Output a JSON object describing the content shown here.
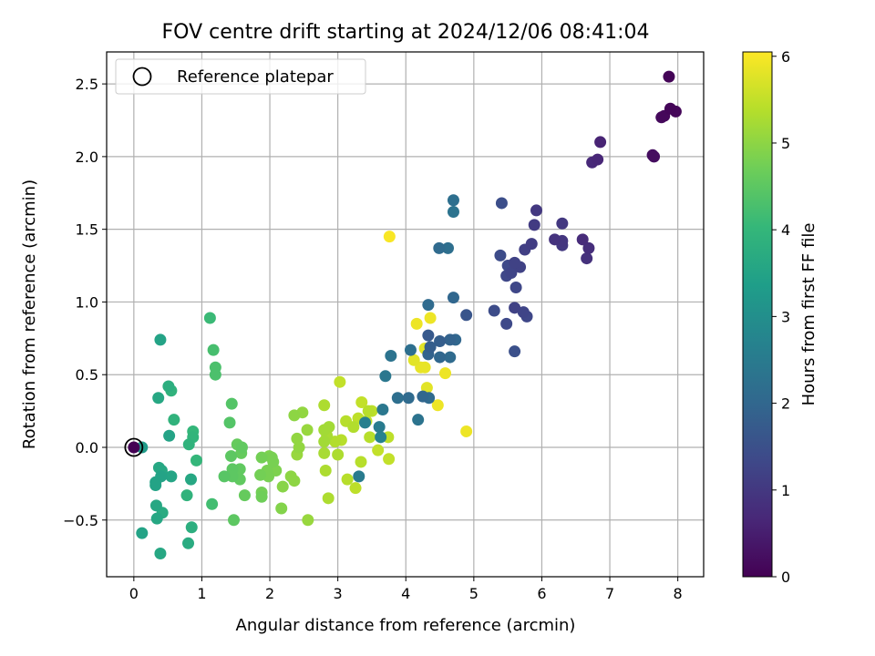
{
  "chart_data": {
    "type": "scatter",
    "title": "FOV centre drift starting at 2024/12/06 08:41:04",
    "xlabel": "Angular distance from reference (arcmin)",
    "ylabel": "Rotation from reference (arcmin)",
    "xlim": [
      -0.4,
      8.38
    ],
    "ylim": [
      -0.89,
      2.72
    ],
    "xticks": [
      0,
      1,
      2,
      3,
      4,
      5,
      6,
      7,
      8
    ],
    "yticks": [
      -0.5,
      0.0,
      0.5,
      1.0,
      1.5,
      2.0,
      2.5
    ],
    "ytick_labels": [
      "−0.5",
      "0.0",
      "0.5",
      "1.0",
      "1.5",
      "2.0",
      "2.5"
    ],
    "grid": true,
    "legend": {
      "placement": "top-left",
      "entries": [
        "Reference platepar"
      ]
    },
    "reference_point": {
      "x": 0.0,
      "y": 0.0
    },
    "colorbar": {
      "label": "Hours from first FF file",
      "range": [
        0,
        6.05
      ],
      "ticks": [
        0,
        1,
        2,
        3,
        4,
        5,
        6
      ],
      "colormap": "viridis",
      "colors": [
        "#440154",
        "#482878",
        "#3e4989",
        "#31688e",
        "#26828e",
        "#1f9e89",
        "#35b779",
        "#6ece58",
        "#b5de2b",
        "#fde725"
      ]
    },
    "points": [
      {
        "x": 7.87,
        "y": 2.55,
        "c": 0.05
      },
      {
        "x": 7.89,
        "y": 2.33,
        "c": 0.08
      },
      {
        "x": 7.97,
        "y": 2.31,
        "c": 0.1
      },
      {
        "x": 7.8,
        "y": 2.28,
        "c": 0.12
      },
      {
        "x": 7.76,
        "y": 2.27,
        "c": 0.15
      },
      {
        "x": 7.65,
        "y": 2.0,
        "c": 0.2
      },
      {
        "x": 7.63,
        "y": 2.01,
        "c": 0.22
      },
      {
        "x": 6.86,
        "y": 2.1,
        "c": 0.6
      },
      {
        "x": 6.82,
        "y": 1.98,
        "c": 0.65
      },
      {
        "x": 6.74,
        "y": 1.96,
        "c": 0.7
      },
      {
        "x": 6.6,
        "y": 1.43,
        "c": 0.75
      },
      {
        "x": 6.69,
        "y": 1.37,
        "c": 0.8
      },
      {
        "x": 6.66,
        "y": 1.3,
        "c": 0.85
      },
      {
        "x": 6.19,
        "y": 1.43,
        "c": 0.9
      },
      {
        "x": 6.3,
        "y": 1.42,
        "c": 0.95
      },
      {
        "x": 6.3,
        "y": 1.39,
        "c": 1.0
      },
      {
        "x": 6.3,
        "y": 1.54,
        "c": 1.0
      },
      {
        "x": 5.92,
        "y": 1.63,
        "c": 1.0
      },
      {
        "x": 5.89,
        "y": 1.53,
        "c": 1.05
      },
      {
        "x": 5.85,
        "y": 1.4,
        "c": 1.1
      },
      {
        "x": 5.75,
        "y": 1.36,
        "c": 1.15
      },
      {
        "x": 5.68,
        "y": 1.24,
        "c": 1.2
      },
      {
        "x": 5.6,
        "y": 1.27,
        "c": 1.2
      },
      {
        "x": 5.55,
        "y": 1.2,
        "c": 1.25
      },
      {
        "x": 5.48,
        "y": 1.18,
        "c": 1.3
      },
      {
        "x": 5.5,
        "y": 1.25,
        "c": 1.35
      },
      {
        "x": 5.39,
        "y": 1.32,
        "c": 1.4
      },
      {
        "x": 5.62,
        "y": 1.1,
        "c": 1.3
      },
      {
        "x": 5.41,
        "y": 1.68,
        "c": 1.45
      },
      {
        "x": 5.6,
        "y": 0.96,
        "c": 1.2
      },
      {
        "x": 5.73,
        "y": 0.93,
        "c": 1.25
      },
      {
        "x": 5.78,
        "y": 0.9,
        "c": 1.3
      },
      {
        "x": 5.48,
        "y": 0.85,
        "c": 1.35
      },
      {
        "x": 5.3,
        "y": 0.94,
        "c": 1.4
      },
      {
        "x": 5.6,
        "y": 0.66,
        "c": 1.5
      },
      {
        "x": 4.89,
        "y": 0.91,
        "c": 1.6
      },
      {
        "x": 4.7,
        "y": 1.7,
        "c": 2.2
      },
      {
        "x": 4.7,
        "y": 1.62,
        "c": 2.3
      },
      {
        "x": 4.49,
        "y": 1.37,
        "c": 2.1
      },
      {
        "x": 4.62,
        "y": 1.37,
        "c": 2.2
      },
      {
        "x": 4.7,
        "y": 1.03,
        "c": 2.0
      },
      {
        "x": 4.33,
        "y": 0.98,
        "c": 2.1
      },
      {
        "x": 4.73,
        "y": 0.74,
        "c": 2.0
      },
      {
        "x": 4.65,
        "y": 0.74,
        "c": 1.9
      },
      {
        "x": 4.5,
        "y": 0.73,
        "c": 1.8
      },
      {
        "x": 4.33,
        "y": 0.77,
        "c": 1.7
      },
      {
        "x": 4.36,
        "y": 0.69,
        "c": 1.8
      },
      {
        "x": 4.33,
        "y": 0.64,
        "c": 1.9
      },
      {
        "x": 4.5,
        "y": 0.62,
        "c": 2.0
      },
      {
        "x": 4.65,
        "y": 0.62,
        "c": 2.1
      },
      {
        "x": 4.07,
        "y": 0.67,
        "c": 2.2
      },
      {
        "x": 3.78,
        "y": 0.63,
        "c": 2.3
      },
      {
        "x": 3.7,
        "y": 0.49,
        "c": 2.4
      },
      {
        "x": 3.88,
        "y": 0.34,
        "c": 2.2
      },
      {
        "x": 4.04,
        "y": 0.34,
        "c": 2.1
      },
      {
        "x": 4.25,
        "y": 0.35,
        "c": 2.0
      },
      {
        "x": 4.34,
        "y": 0.34,
        "c": 2.1
      },
      {
        "x": 4.18,
        "y": 0.19,
        "c": 2.3
      },
      {
        "x": 3.66,
        "y": 0.26,
        "c": 2.4
      },
      {
        "x": 3.61,
        "y": 0.14,
        "c": 2.5
      },
      {
        "x": 3.4,
        "y": 0.17,
        "c": 2.6
      },
      {
        "x": 3.63,
        "y": 0.07,
        "c": 2.7
      },
      {
        "x": 3.31,
        "y": -0.2,
        "c": 2.5
      },
      {
        "x": 3.76,
        "y": 1.45,
        "c": 6.0
      },
      {
        "x": 4.16,
        "y": 0.85,
        "c": 5.9
      },
      {
        "x": 4.36,
        "y": 0.89,
        "c": 5.9
      },
      {
        "x": 4.12,
        "y": 0.6,
        "c": 5.8
      },
      {
        "x": 4.22,
        "y": 0.55,
        "c": 5.85
      },
      {
        "x": 4.28,
        "y": 0.55,
        "c": 5.85
      },
      {
        "x": 4.58,
        "y": 0.51,
        "c": 5.9
      },
      {
        "x": 4.31,
        "y": 0.41,
        "c": 5.8
      },
      {
        "x": 4.47,
        "y": 0.29,
        "c": 5.9
      },
      {
        "x": 4.89,
        "y": 0.11,
        "c": 5.9
      },
      {
        "x": 4.28,
        "y": 0.68,
        "c": 5.8
      },
      {
        "x": 3.03,
        "y": 0.45,
        "c": 5.5
      },
      {
        "x": 3.35,
        "y": 0.31,
        "c": 5.5
      },
      {
        "x": 3.45,
        "y": 0.25,
        "c": 5.4
      },
      {
        "x": 3.5,
        "y": 0.25,
        "c": 5.45
      },
      {
        "x": 3.42,
        "y": 0.18,
        "c": 5.5
      },
      {
        "x": 3.3,
        "y": 0.2,
        "c": 5.45
      },
      {
        "x": 3.12,
        "y": 0.18,
        "c": 5.4
      },
      {
        "x": 3.23,
        "y": 0.14,
        "c": 5.35
      },
      {
        "x": 3.47,
        "y": 0.07,
        "c": 5.4
      },
      {
        "x": 3.74,
        "y": 0.07,
        "c": 5.45
      },
      {
        "x": 3.59,
        "y": -0.02,
        "c": 5.5
      },
      {
        "x": 3.75,
        "y": -0.08,
        "c": 5.5
      },
      {
        "x": 3.05,
        "y": 0.05,
        "c": 5.4
      },
      {
        "x": 2.96,
        "y": 0.04,
        "c": 5.35
      },
      {
        "x": 3.0,
        "y": -0.05,
        "c": 5.3
      },
      {
        "x": 3.34,
        "y": -0.1,
        "c": 5.4
      },
      {
        "x": 3.14,
        "y": -0.22,
        "c": 5.4
      },
      {
        "x": 3.26,
        "y": -0.28,
        "c": 5.45
      },
      {
        "x": 2.8,
        "y": 0.29,
        "c": 5.3
      },
      {
        "x": 2.87,
        "y": 0.14,
        "c": 5.2
      },
      {
        "x": 2.8,
        "y": 0.12,
        "c": 5.2
      },
      {
        "x": 2.84,
        "y": 0.08,
        "c": 5.25
      },
      {
        "x": 2.8,
        "y": 0.04,
        "c": 5.2
      },
      {
        "x": 2.8,
        "y": -0.04,
        "c": 5.25
      },
      {
        "x": 2.82,
        "y": -0.16,
        "c": 5.3
      },
      {
        "x": 2.86,
        "y": -0.35,
        "c": 5.3
      },
      {
        "x": 2.56,
        "y": -0.5,
        "c": 5.1
      },
      {
        "x": 2.55,
        "y": 0.12,
        "c": 5.1
      },
      {
        "x": 2.48,
        "y": 0.24,
        "c": 5.05
      },
      {
        "x": 2.36,
        "y": 0.22,
        "c": 5.0
      },
      {
        "x": 2.4,
        "y": 0.06,
        "c": 5.05
      },
      {
        "x": 2.4,
        "y": -0.05,
        "c": 5.1
      },
      {
        "x": 2.43,
        "y": 0.0,
        "c": 5.05
      },
      {
        "x": 2.31,
        "y": -0.2,
        "c": 5.0
      },
      {
        "x": 2.36,
        "y": -0.23,
        "c": 5.0
      },
      {
        "x": 2.19,
        "y": -0.27,
        "c": 4.95
      },
      {
        "x": 2.17,
        "y": -0.42,
        "c": 4.9
      },
      {
        "x": 2.03,
        "y": -0.07,
        "c": 4.8
      },
      {
        "x": 1.99,
        "y": -0.06,
        "c": 4.85
      },
      {
        "x": 2.05,
        "y": -0.1,
        "c": 4.8
      },
      {
        "x": 2.09,
        "y": -0.16,
        "c": 4.85
      },
      {
        "x": 1.96,
        "y": -0.16,
        "c": 4.8
      },
      {
        "x": 1.88,
        "y": -0.07,
        "c": 4.75
      },
      {
        "x": 1.86,
        "y": -0.19,
        "c": 4.75
      },
      {
        "x": 1.98,
        "y": -0.2,
        "c": 4.8
      },
      {
        "x": 1.88,
        "y": -0.31,
        "c": 4.75
      },
      {
        "x": 1.88,
        "y": -0.34,
        "c": 4.7
      },
      {
        "x": 1.52,
        "y": 0.02,
        "c": 4.6
      },
      {
        "x": 1.59,
        "y": 0.0,
        "c": 4.55
      },
      {
        "x": 1.58,
        "y": -0.04,
        "c": 4.6
      },
      {
        "x": 1.43,
        "y": -0.06,
        "c": 4.5
      },
      {
        "x": 1.45,
        "y": -0.15,
        "c": 4.5
      },
      {
        "x": 1.56,
        "y": -0.15,
        "c": 4.55
      },
      {
        "x": 1.45,
        "y": -0.2,
        "c": 4.5
      },
      {
        "x": 1.33,
        "y": -0.2,
        "c": 4.45
      },
      {
        "x": 1.56,
        "y": -0.22,
        "c": 4.55
      },
      {
        "x": 1.63,
        "y": -0.33,
        "c": 4.6
      },
      {
        "x": 1.47,
        "y": -0.5,
        "c": 4.5
      },
      {
        "x": 1.41,
        "y": 0.17,
        "c": 4.4
      },
      {
        "x": 1.44,
        "y": 0.3,
        "c": 4.4
      },
      {
        "x": 1.2,
        "y": 0.55,
        "c": 4.3
      },
      {
        "x": 1.2,
        "y": 0.5,
        "c": 4.3
      },
      {
        "x": 1.17,
        "y": 0.67,
        "c": 4.25
      },
      {
        "x": 1.12,
        "y": 0.89,
        "c": 4.1
      },
      {
        "x": 1.15,
        "y": -0.39,
        "c": 4.2
      },
      {
        "x": 0.39,
        "y": 0.74,
        "c": 3.5
      },
      {
        "x": 0.36,
        "y": 0.34,
        "c": 3.6
      },
      {
        "x": 0.51,
        "y": 0.42,
        "c": 3.8
      },
      {
        "x": 0.55,
        "y": 0.39,
        "c": 3.9
      },
      {
        "x": 0.59,
        "y": 0.19,
        "c": 3.9
      },
      {
        "x": 0.87,
        "y": 0.11,
        "c": 4.0
      },
      {
        "x": 0.87,
        "y": 0.07,
        "c": 3.95
      },
      {
        "x": 0.81,
        "y": 0.02,
        "c": 3.9
      },
      {
        "x": 0.52,
        "y": 0.08,
        "c": 3.5
      },
      {
        "x": 0.92,
        "y": -0.09,
        "c": 4.0
      },
      {
        "x": 0.37,
        "y": -0.14,
        "c": 3.6
      },
      {
        "x": 0.41,
        "y": -0.16,
        "c": 3.6
      },
      {
        "x": 0.4,
        "y": -0.2,
        "c": 3.5
      },
      {
        "x": 0.55,
        "y": -0.2,
        "c": 3.55
      },
      {
        "x": 0.32,
        "y": -0.24,
        "c": 3.5
      },
      {
        "x": 0.32,
        "y": -0.26,
        "c": 3.5
      },
      {
        "x": 0.84,
        "y": -0.22,
        "c": 3.6
      },
      {
        "x": 0.42,
        "y": -0.45,
        "c": 3.7
      },
      {
        "x": 0.33,
        "y": -0.4,
        "c": 3.6
      },
      {
        "x": 0.34,
        "y": -0.49,
        "c": 3.6
      },
      {
        "x": 0.78,
        "y": -0.33,
        "c": 3.9
      },
      {
        "x": 0.85,
        "y": -0.55,
        "c": 3.8
      },
      {
        "x": 0.8,
        "y": -0.66,
        "c": 3.7
      },
      {
        "x": 0.12,
        "y": -0.59,
        "c": 3.5
      },
      {
        "x": 0.39,
        "y": -0.73,
        "c": 3.6
      },
      {
        "x": 0.12,
        "y": 0.0,
        "c": 3.3
      },
      {
        "x": 0.0,
        "y": 0.0,
        "c": 0.0
      }
    ]
  }
}
